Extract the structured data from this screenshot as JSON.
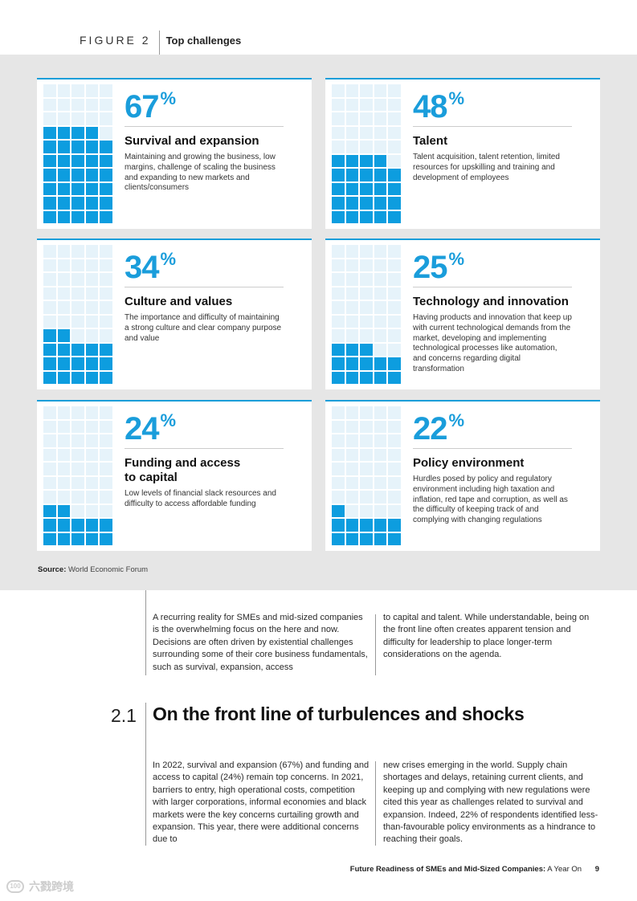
{
  "figure": {
    "label": "FIGURE 2",
    "title": "Top challenges"
  },
  "cards": [
    {
      "value": 67,
      "pct": "67",
      "symbol": "%",
      "title": "Survival and expansion",
      "desc": "Maintaining and growing the business, low margins, challenge of scaling the business and expanding to new markets and clients/consumers"
    },
    {
      "value": 48,
      "pct": "48",
      "symbol": "%",
      "title": "Talent",
      "desc": "Talent acquisition, talent retention, limited resources for upskilling and training and development of employees"
    },
    {
      "value": 34,
      "pct": "34",
      "symbol": "%",
      "title": "Culture and values",
      "desc": "The importance and difficulty of maintaining a strong culture and clear company purpose and value"
    },
    {
      "value": 25,
      "pct": "25",
      "symbol": "%",
      "title": "Technology and innovation",
      "desc": "Having products and innovation that keep up with current technological demands from the market, developing and implementing technological processes like automation, and concerns regarding digital transformation"
    },
    {
      "value": 24,
      "pct": "24",
      "symbol": "%",
      "title": "Funding and access\nto capital",
      "desc": "Low levels of financial slack resources and difficulty to access affordable funding"
    },
    {
      "value": 22,
      "pct": "22",
      "symbol": "%",
      "title": "Policy environment",
      "desc": "Hurdles posed by policy and regulatory environment including high taxation and inflation, red tape and corruption, as well as the difficulty of keeping track of and complying with changing regulations"
    }
  ],
  "source": {
    "label": "Source:",
    "text": "World Economic Forum"
  },
  "intro": {
    "col1": "A recurring reality for SMEs and mid-sized companies is the overwhelming focus on the here and now. Decisions are often driven by existential challenges surrounding some of their core business fundamentals, such as survival, expansion, access",
    "col2": "to capital and talent. While understandable, being on the front line often creates apparent tension and difficulty for leadership to place longer-term considerations on the agenda."
  },
  "section": {
    "number": "2.1",
    "title": "On the front line of turbulences and shocks",
    "col1": "In 2022, survival and expansion (67%) and funding and access to capital (24%) remain top concerns. In 2021, barriers to entry, high operational costs, competition with larger corporations, informal economies and black markets were the key concerns curtailing growth and expansion. This year, there were additional concerns due to",
    "col2": "new crises emerging in the world. Supply chain shortages and delays, retaining current clients, and keeping up and complying with new regulations were cited this year as challenges related to survival and expansion. Indeed, 22% of respondents identified less-than-favourable policy environments as a hindrance to reaching their goals."
  },
  "footer": {
    "title": "Future Readiness of SMEs and Mid-Sized Companies:",
    "subtitle": "A Year On",
    "page": "9"
  },
  "watermark": {
    "logo": "100",
    "text": "六戮跨境"
  },
  "colors": {
    "accent": "#0d9ddf",
    "tile_off": "#e6f3fa",
    "band": "#e6e6e6"
  }
}
